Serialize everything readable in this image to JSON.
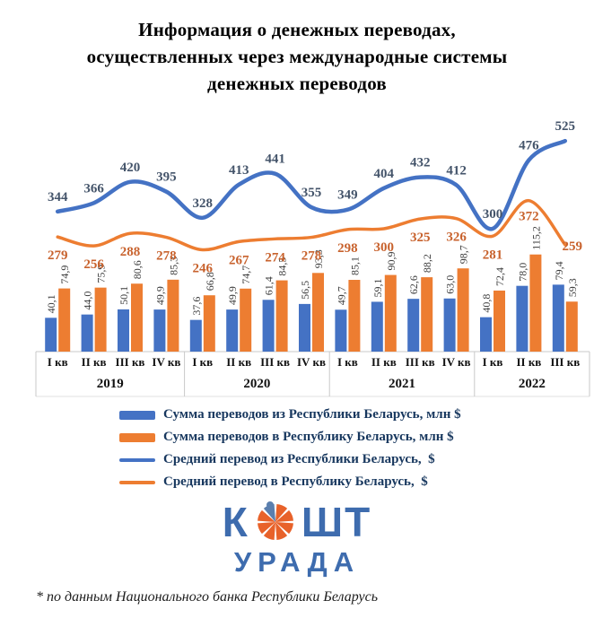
{
  "title": {
    "lines": [
      "Информация о денежных переводах,",
      "осуществленных через международные системы",
      "денежных переводов"
    ]
  },
  "chart_data": {
    "type": "bar+line combo",
    "grid": "off",
    "legend_position": "bottom-left",
    "categories": [
      "I кв 2019",
      "II кв 2019",
      "III кв 2019",
      "IV кв 2019",
      "I кв 2020",
      "II кв 2020",
      "III кв 2020",
      "IV кв 2020",
      "I кв 2021",
      "II кв 2021",
      "III кв 2021",
      "IV кв 2021",
      "I кв 2022",
      "II кв 2022",
      "III кв 2022"
    ],
    "years": [
      {
        "label": "2019",
        "quarters": [
          "I кв",
          "II кв",
          "III кв",
          "IV кв"
        ]
      },
      {
        "label": "2020",
        "quarters": [
          "I кв",
          "II кв",
          "III кв",
          "IV кв"
        ]
      },
      {
        "label": "2021",
        "quarters": [
          "I кв",
          "II кв",
          "III кв",
          "IV кв"
        ]
      },
      {
        "label": "2022",
        "quarters": [
          "I кв",
          "II кв",
          "III кв"
        ]
      }
    ],
    "series": [
      {
        "name": "Сумма переводов из Республики Беларусь, млн $",
        "type": "bar",
        "color": "#4472c4",
        "values": [
          40.1,
          44.0,
          50.1,
          49.9,
          37.6,
          49.9,
          61.4,
          56.5,
          49.7,
          59.1,
          62.6,
          63.0,
          40.8,
          78.0,
          79.4
        ]
      },
      {
        "name": "Сумма переводов в Республику Беларусь, млн $",
        "type": "bar",
        "color": "#ed7d31",
        "values": [
          74.9,
          75.9,
          80.6,
          85.3,
          66.8,
          74.7,
          84.5,
          93.3,
          85.1,
          90.9,
          88.2,
          98.7,
          72.4,
          115.2,
          59.3
        ]
      },
      {
        "name": "Средний перевод из Республики Беларусь,  $",
        "type": "line",
        "color": "#4472c4",
        "label_color": "#44546a",
        "values": [
          344,
          366,
          420,
          395,
          328,
          413,
          441,
          355,
          349,
          404,
          432,
          412,
          300,
          476,
          525
        ]
      },
      {
        "name": "Средний перевод в Республику Беларусь,  $",
        "type": "line",
        "color": "#ed7d31",
        "label_color": "#c8622d",
        "values": [
          279,
          256,
          288,
          278,
          246,
          267,
          274,
          278,
          298,
          300,
          325,
          326,
          281,
          372,
          259
        ]
      }
    ]
  },
  "logo": {
    "top_left": "К",
    "top_right": "ШТ",
    "bottom": "УРАДА",
    "pie_orange": "#e8622a",
    "pie_blue": "#5b7fae",
    "text_color": "#3e6cae"
  },
  "footnote": "* по данным Национального банка Республики Беларусь"
}
